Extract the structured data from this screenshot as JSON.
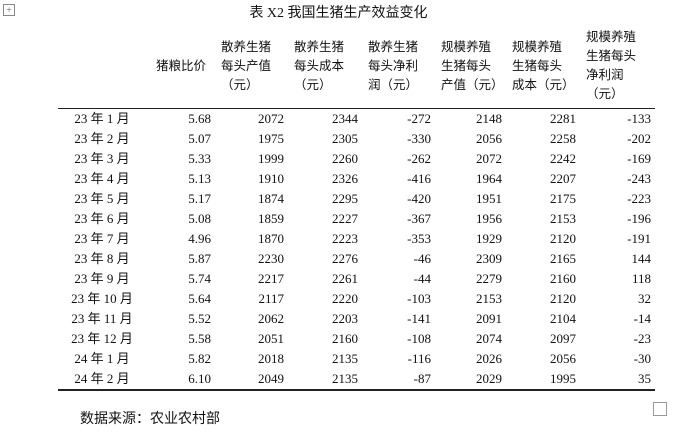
{
  "title": "表 X2  我国生猪生产效益变化",
  "table": {
    "header": [
      [],
      [
        "猪粮比价"
      ],
      [
        "散养生猪",
        "每头产值",
        "（元）"
      ],
      [
        "散养生猪",
        "每头成本",
        "（元）"
      ],
      [
        "散养生猪",
        "每头净利",
        "润（元）"
      ],
      [
        "规模养殖",
        "生猪每头",
        "产值（元）"
      ],
      [
        "规模养殖",
        "生猪每头",
        "成本（元）"
      ],
      [
        "规模养殖",
        "生猪每头",
        "净利润",
        "（元）"
      ]
    ],
    "rows": [
      [
        "23 年 1 月",
        "5.68",
        "2072",
        "2344",
        "-272",
        "2148",
        "2281",
        "-133"
      ],
      [
        "23 年 2 月",
        "5.07",
        "1975",
        "2305",
        "-330",
        "2056",
        "2258",
        "-202"
      ],
      [
        "23 年 3 月",
        "5.33",
        "1999",
        "2260",
        "-262",
        "2072",
        "2242",
        "-169"
      ],
      [
        "23 年 4 月",
        "5.13",
        "1910",
        "2326",
        "-416",
        "1964",
        "2207",
        "-243"
      ],
      [
        "23 年 5 月",
        "5.17",
        "1874",
        "2295",
        "-420",
        "1951",
        "2175",
        "-223"
      ],
      [
        "23 年 6 月",
        "5.08",
        "1859",
        "2227",
        "-367",
        "1956",
        "2153",
        "-196"
      ],
      [
        "23 年 7 月",
        "4.96",
        "1870",
        "2223",
        "-353",
        "1929",
        "2120",
        "-191"
      ],
      [
        "23 年 8 月",
        "5.87",
        "2230",
        "2276",
        "-46",
        "2309",
        "2165",
        "144"
      ],
      [
        "23 年 9 月",
        "5.74",
        "2217",
        "2261",
        "-44",
        "2279",
        "2160",
        "118"
      ],
      [
        "23 年 10 月",
        "5.64",
        "2117",
        "2220",
        "-103",
        "2153",
        "2120",
        "32"
      ],
      [
        "23 年 11 月",
        "5.52",
        "2062",
        "2203",
        "-141",
        "2091",
        "2104",
        "-14"
      ],
      [
        "23 年 12 月",
        "5.58",
        "2051",
        "2160",
        "-108",
        "2074",
        "2097",
        "-23"
      ],
      [
        "24 年 1 月",
        "5.82",
        "2018",
        "2135",
        "-116",
        "2026",
        "2056",
        "-30"
      ],
      [
        "24 年 2 月",
        "6.10",
        "2049",
        "2135",
        "-87",
        "2029",
        "1995",
        "35"
      ]
    ]
  },
  "source": "数据来源：农业农村部"
}
